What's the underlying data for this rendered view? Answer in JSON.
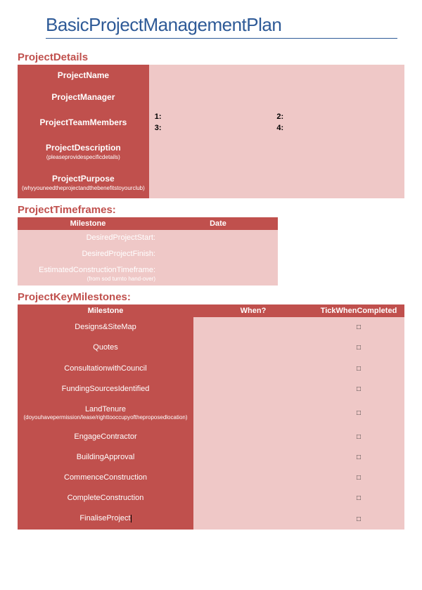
{
  "colors": {
    "accent_red": "#c0504d",
    "light_red": "#efc8c7",
    "title_blue": "#2e5a97",
    "white": "#ffffff",
    "black": "#000000"
  },
  "title": "BasicProjectManagementPlan",
  "details": {
    "heading": "ProjectDetails",
    "rows": {
      "name": {
        "label": "ProjectName"
      },
      "manager": {
        "label": "ProjectManager"
      },
      "members": {
        "label": "ProjectTeamMembers",
        "m1": "1:",
        "m2": "2:",
        "m3": "3:",
        "m4": "4:"
      },
      "description": {
        "label": "ProjectDescription",
        "sub": "(pleaseprovidespecificdetails)"
      },
      "purpose": {
        "label": "ProjectPurpose",
        "sub": "(whyyouneedtheprojectandthebenefitstoyourclub)"
      }
    }
  },
  "timeframes": {
    "heading": "ProjectTimeframes:",
    "headers": {
      "c1": "Milestone",
      "c2": "Date"
    },
    "rows": {
      "start": {
        "label": "DesiredProjectStart:"
      },
      "finish": {
        "label": "DesiredProjectFinish:"
      },
      "ect": {
        "label": "EstimatedConstructionTimeframe:",
        "sub": "(from sod turnto hand-over)"
      }
    }
  },
  "milestones": {
    "heading": "ProjectKeyMilestones:",
    "headers": {
      "c1": "Milestone",
      "c2": "When?",
      "c3": "TickWhenCompleted"
    },
    "tick_glyph": "□",
    "rows": [
      {
        "label": "Designs&SiteMap"
      },
      {
        "label": "Quotes"
      },
      {
        "label": "ConsultationwithCouncil"
      },
      {
        "label": "FundingSourcesIdentified"
      },
      {
        "label": "LandTenure",
        "sub": "(doyouhavepermission/lease/righttooccupyoftheproposedlocation)"
      },
      {
        "label": "EngageContractor"
      },
      {
        "label": "BuildingApproval"
      },
      {
        "label": "CommenceConstruction"
      },
      {
        "label": "CompleteConstruction"
      },
      {
        "label": "FinaliseProject"
      }
    ]
  }
}
